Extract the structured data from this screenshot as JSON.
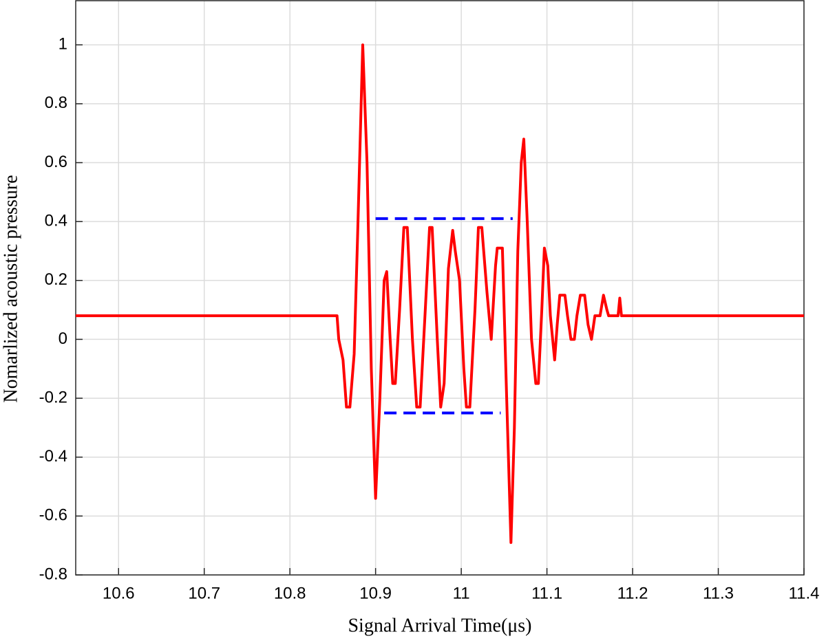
{
  "chart_data": {
    "type": "line",
    "xlabel": "Signal Arrival Time(μs)",
    "ylabel": "Nomarlized acoustic pressure",
    "xlim": [
      10.55,
      11.4
    ],
    "ylim": [
      -0.8,
      1.15
    ],
    "xticks": [
      10.6,
      10.7,
      10.8,
      10.9,
      11,
      11.1,
      11.2,
      11.3,
      11.4
    ],
    "yticks": [
      -0.8,
      -0.6,
      -0.4,
      -0.2,
      0,
      0.2,
      0.4,
      0.6,
      0.8,
      1
    ],
    "grid": true,
    "series": [
      {
        "color": "#ff0000",
        "dash": false,
        "x": [
          10.55,
          10.855,
          10.857,
          10.862,
          10.866,
          10.87,
          10.875,
          10.879,
          10.885,
          10.89,
          10.895,
          10.9,
          10.905,
          10.91,
          10.913,
          10.917,
          10.92,
          10.923,
          10.928,
          10.933,
          10.937,
          10.943,
          10.948,
          10.952,
          10.958,
          10.963,
          10.966,
          10.972,
          10.976,
          10.98,
          10.985,
          10.99,
          10.993,
          10.998,
          11.003,
          11.006,
          11.01,
          11.016,
          11.02,
          11.024,
          11.03,
          11.035,
          11.04,
          11.042,
          11.048,
          11.053,
          11.058,
          11.062,
          11.066,
          11.07,
          11.073,
          11.077,
          11.082,
          11.087,
          11.09,
          11.094,
          11.097,
          11.101,
          11.104,
          11.109,
          11.112,
          11.115,
          11.121,
          11.124,
          11.128,
          11.132,
          11.135,
          11.139,
          11.144,
          11.148,
          11.152,
          11.156,
          11.162,
          11.166,
          11.17,
          11.172,
          11.183,
          11.185,
          11.187,
          11.4
        ],
        "values": [
          0.08,
          0.08,
          0.0,
          -0.07,
          -0.23,
          -0.23,
          -0.05,
          0.35,
          1.0,
          0.6,
          -0.1,
          -0.54,
          -0.2,
          0.2,
          0.23,
          0.0,
          -0.15,
          -0.15,
          0.1,
          0.38,
          0.38,
          0.0,
          -0.23,
          -0.23,
          0.1,
          0.38,
          0.38,
          0.0,
          -0.23,
          -0.15,
          0.24,
          0.37,
          0.3,
          0.2,
          -0.1,
          -0.23,
          -0.23,
          0.1,
          0.38,
          0.38,
          0.16,
          0.0,
          0.25,
          0.31,
          0.31,
          -0.2,
          -0.69,
          -0.3,
          0.3,
          0.6,
          0.68,
          0.4,
          0.0,
          -0.15,
          -0.15,
          0.1,
          0.31,
          0.25,
          0.08,
          -0.07,
          0.05,
          0.15,
          0.15,
          0.08,
          0.0,
          0.0,
          0.08,
          0.15,
          0.15,
          0.05,
          0.0,
          0.08,
          0.08,
          0.15,
          0.1,
          0.08,
          0.08,
          0.14,
          0.08,
          0.08
        ]
      },
      {
        "color": "#0000ff",
        "dash": true,
        "x": [
          10.9,
          11.06
        ],
        "values": [
          0.41,
          0.41
        ]
      },
      {
        "color": "#0000ff",
        "dash": true,
        "x": [
          10.91,
          11.046
        ],
        "values": [
          -0.25,
          -0.25
        ]
      }
    ]
  }
}
